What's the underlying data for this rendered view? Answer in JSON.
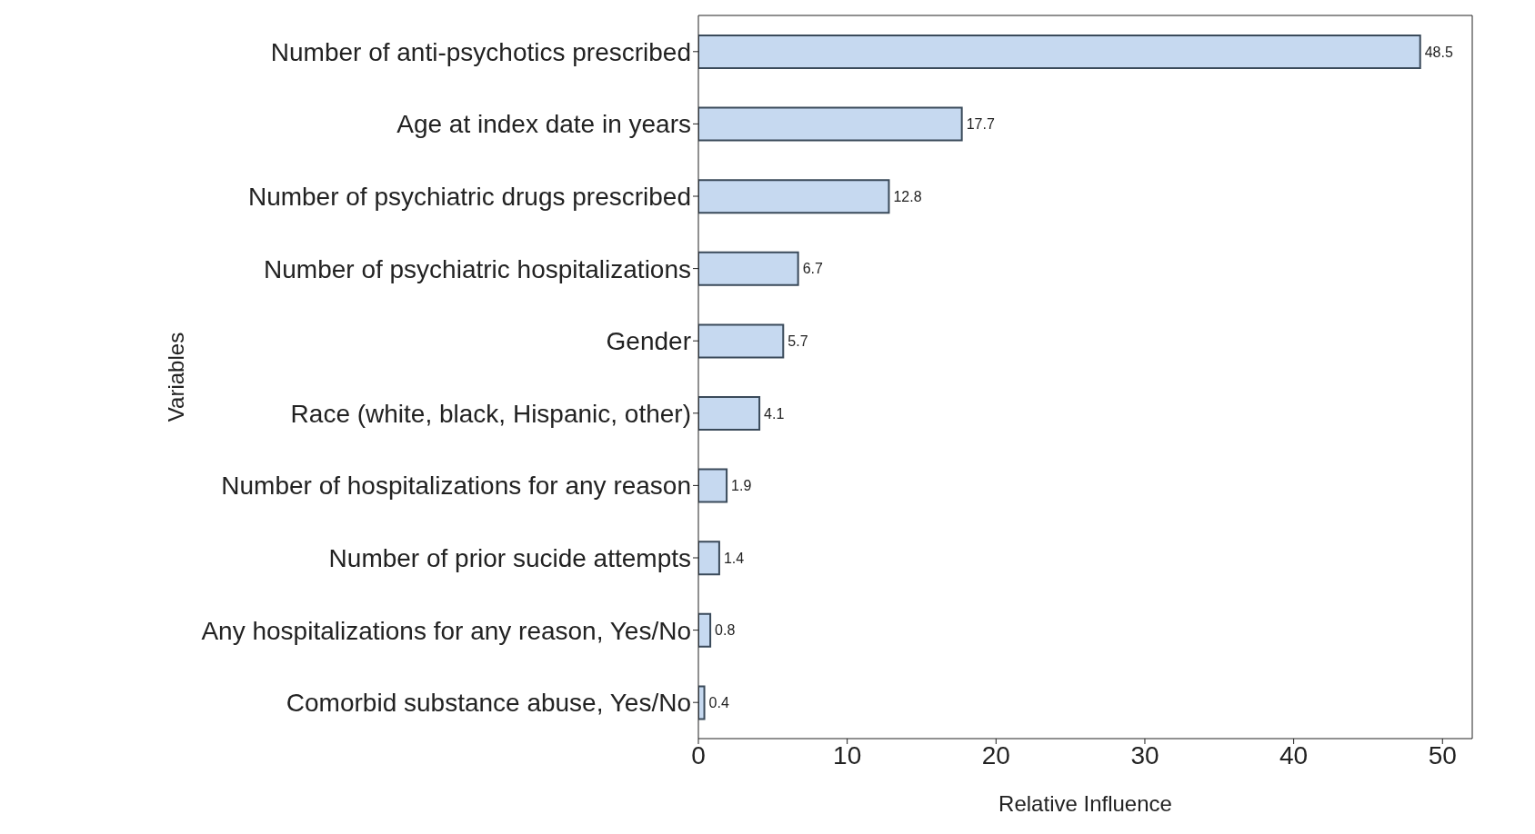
{
  "chart_data": {
    "type": "bar",
    "orientation": "horizontal",
    "xlabel": "Relative Influence",
    "ylabel": "Variables",
    "categories": [
      "Number of anti-psychotics prescribed",
      "Age at index date in years",
      "Number of psychiatric drugs prescribed",
      "Number of psychiatric hospitalizations",
      "Gender",
      "Race (white, black, Hispanic, other)",
      "Number of hospitalizations for any reason",
      "Number of prior sucide attempts",
      "Any hospitalizations for any reason, Yes/No",
      "Comorbid substance abuse, Yes/No"
    ],
    "values": [
      48.5,
      17.7,
      12.8,
      6.7,
      5.7,
      4.1,
      1.9,
      1.4,
      0.8,
      0.4
    ],
    "color": "#c6d9f0",
    "xlim": [
      0,
      52
    ],
    "xticks": [
      0,
      10,
      20,
      30,
      40,
      50
    ],
    "data_labels": true,
    "grid": false
  }
}
